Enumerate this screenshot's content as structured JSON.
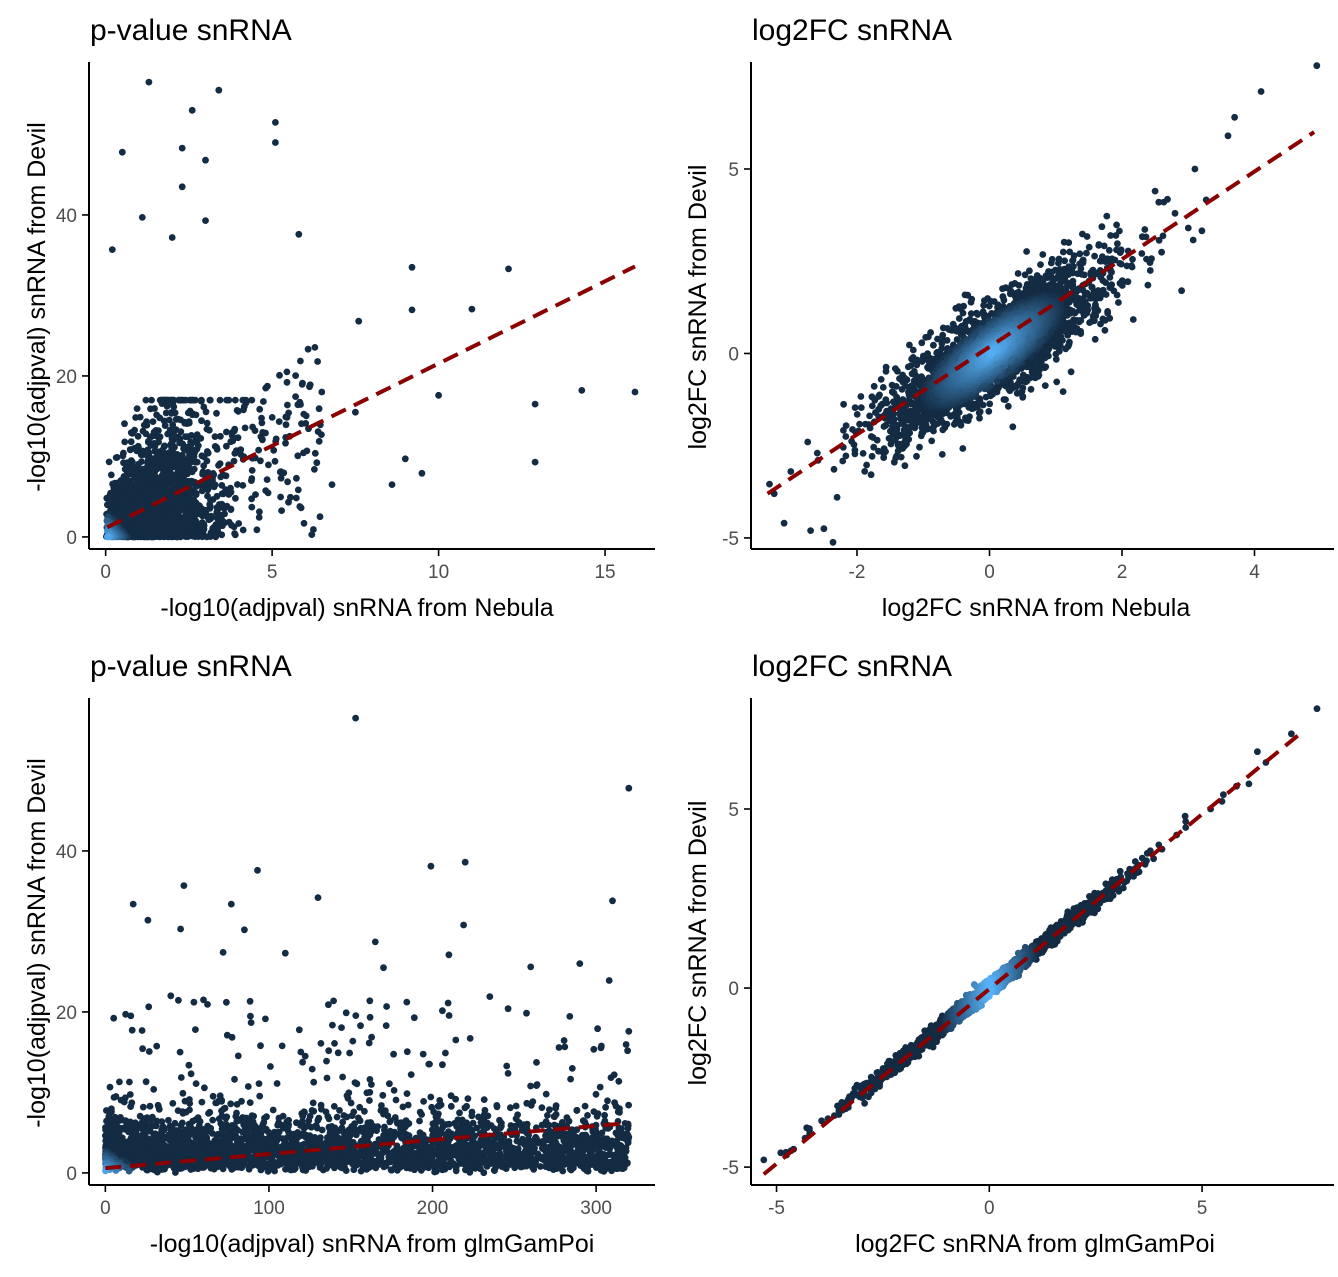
{
  "colors": {
    "point_dark": "#132b43",
    "point_light": "#56b1f7",
    "trend_line": "#8b0000",
    "axis": "#000000",
    "tick_text": "#4d4d4d"
  },
  "chart_data": [
    {
      "type": "scatter",
      "title": "p-value snRNA",
      "xlabel": "-log10(adjpval) snRNA from Nebula",
      "ylabel": "-log10(adjpval) snRNA from Devil",
      "xlim": [
        -0.5,
        16.5
      ],
      "ylim": [
        -1.5,
        59
      ],
      "xticks": [
        0,
        5,
        10,
        15
      ],
      "xtick_labels": [
        "0",
        "5",
        "10",
        "15"
      ],
      "yticks": [
        0,
        20,
        40
      ],
      "ytick_labels": [
        "0",
        "20",
        "40"
      ],
      "grid": false,
      "density_colored": true,
      "fit_line": {
        "style": "dashed",
        "points": [
          [
            0.05,
            1.2
          ],
          [
            15.9,
            33.6
          ]
        ]
      },
      "highlighted_points": [
        [
          1.3,
          56.5
        ],
        [
          3.4,
          55.5
        ],
        [
          2.6,
          53.0
        ],
        [
          5.1,
          51.5
        ],
        [
          5.1,
          49.0
        ],
        [
          0.5,
          47.8
        ],
        [
          2.3,
          48.3
        ],
        [
          3.0,
          46.8
        ],
        [
          2.3,
          43.5
        ],
        [
          1.1,
          39.7
        ],
        [
          3.0,
          39.3
        ],
        [
          2.0,
          37.2
        ],
        [
          5.8,
          37.6
        ],
        [
          0.2,
          35.7
        ],
        [
          7.6,
          26.8
        ],
        [
          9.2,
          33.5
        ],
        [
          9.2,
          28.2
        ],
        [
          12.1,
          33.3
        ],
        [
          11.0,
          28.3
        ],
        [
          12.9,
          16.5
        ],
        [
          12.9,
          9.3
        ],
        [
          14.3,
          18.2
        ],
        [
          15.9,
          18.0
        ],
        [
          9.0,
          9.7
        ],
        [
          9.5,
          7.9
        ],
        [
          6.8,
          6.5
        ],
        [
          8.6,
          6.5
        ],
        [
          10.0,
          17.6
        ],
        [
          7.5,
          15.5
        ]
      ]
    },
    {
      "type": "scatter",
      "title": "log2FC snRNA",
      "xlabel": "log2FC snRNA from Nebula",
      "ylabel": "log2FC snRNA from Devil",
      "xlim": [
        -3.6,
        5.2
      ],
      "ylim": [
        -5.3,
        7.9
      ],
      "xticks": [
        -2,
        0,
        2,
        4
      ],
      "xtick_labels": [
        "-2",
        "0",
        "2",
        "4"
      ],
      "yticks": [
        -5,
        0,
        5
      ],
      "ytick_labels": [
        "-5",
        "0",
        "5"
      ],
      "grid": false,
      "density_colored": true,
      "fit_line": {
        "style": "dashed",
        "points": [
          [
            -3.35,
            -3.8
          ],
          [
            4.9,
            6.0
          ]
        ]
      },
      "highlighted_points": [
        [
          4.94,
          7.8
        ],
        [
          4.1,
          7.1
        ],
        [
          3.7,
          6.4
        ],
        [
          3.6,
          5.9
        ],
        [
          3.1,
          5.0
        ],
        [
          2.5,
          4.4
        ],
        [
          -3.1,
          -4.6
        ],
        [
          -2.7,
          -4.8
        ],
        [
          -2.5,
          -4.75
        ],
        [
          -3.25,
          -3.8
        ],
        [
          -3.0,
          -3.2
        ],
        [
          -2.6,
          -2.7
        ],
        [
          3.0,
          3.4
        ],
        [
          2.8,
          3.8
        ],
        [
          2.9,
          1.7
        ],
        [
          -2.3,
          -3.9
        ]
      ]
    },
    {
      "type": "scatter",
      "title": "p-value snRNA",
      "xlabel": "-log10(adjpval) snRNA from glmGamPoi",
      "ylabel": "-log10(adjpval) snRNA from Devil",
      "xlim": [
        -10,
        336
      ],
      "ylim": [
        -1.5,
        59
      ],
      "xticks": [
        0,
        100,
        200,
        300
      ],
      "xtick_labels": [
        "0",
        "100",
        "200",
        "300"
      ],
      "yticks": [
        0,
        20,
        40
      ],
      "ytick_labels": [
        "0",
        "20",
        "40"
      ],
      "grid": false,
      "density_colored": true,
      "fit_line": {
        "style": "dashed",
        "points": [
          [
            0,
            0.6
          ],
          [
            320,
            6.2
          ]
        ]
      },
      "highlighted_points": [
        [
          153,
          56.5
        ],
        [
          320,
          47.8
        ],
        [
          93,
          37.6
        ],
        [
          199,
          38.1
        ],
        [
          220,
          38.6
        ],
        [
          48,
          35.7
        ],
        [
          130,
          34.2
        ],
        [
          17,
          33.4
        ],
        [
          77,
          33.4
        ],
        [
          310,
          33.8
        ],
        [
          26,
          31.4
        ],
        [
          219,
          30.8
        ],
        [
          46,
          30.3
        ],
        [
          85,
          30.2
        ],
        [
          165,
          28.7
        ],
        [
          72,
          27.4
        ],
        [
          110,
          27.3
        ],
        [
          290,
          26.0
        ],
        [
          210,
          27.1
        ],
        [
          260,
          25.6
        ],
        [
          308,
          23.9
        ],
        [
          170,
          25.5
        ],
        [
          40,
          22.0
        ],
        [
          60,
          21.5
        ],
        [
          235,
          21.9
        ],
        [
          320,
          17.6
        ]
      ]
    },
    {
      "type": "scatter",
      "title": "log2FC snRNA",
      "xlabel": "log2FC snRNA from glmGamPoi",
      "ylabel": "log2FC snRNA from Devil",
      "xlim": [
        -5.6,
        8.1
      ],
      "ylim": [
        -5.5,
        8.1
      ],
      "xticks": [
        -5,
        0,
        5
      ],
      "xtick_labels": [
        "-5",
        "0",
        "5"
      ],
      "yticks": [
        -5,
        0,
        5
      ],
      "ytick_labels": [
        "-5",
        "0",
        "5"
      ],
      "grid": false,
      "density_colored": true,
      "fit_line": {
        "style": "dashed",
        "points": [
          [
            -5.3,
            -5.2
          ],
          [
            7.3,
            7.1
          ]
        ]
      },
      "highlighted_points": [
        [
          7.7,
          7.8
        ],
        [
          7.1,
          7.1
        ],
        [
          6.3,
          6.6
        ],
        [
          6.5,
          6.3
        ],
        [
          6.1,
          5.7
        ],
        [
          5.5,
          5.4
        ],
        [
          5.2,
          5.0
        ],
        [
          4.6,
          4.8
        ],
        [
          -5.3,
          -4.8
        ],
        [
          -4.9,
          -4.6
        ],
        [
          -4.6,
          -4.5
        ]
      ]
    }
  ]
}
